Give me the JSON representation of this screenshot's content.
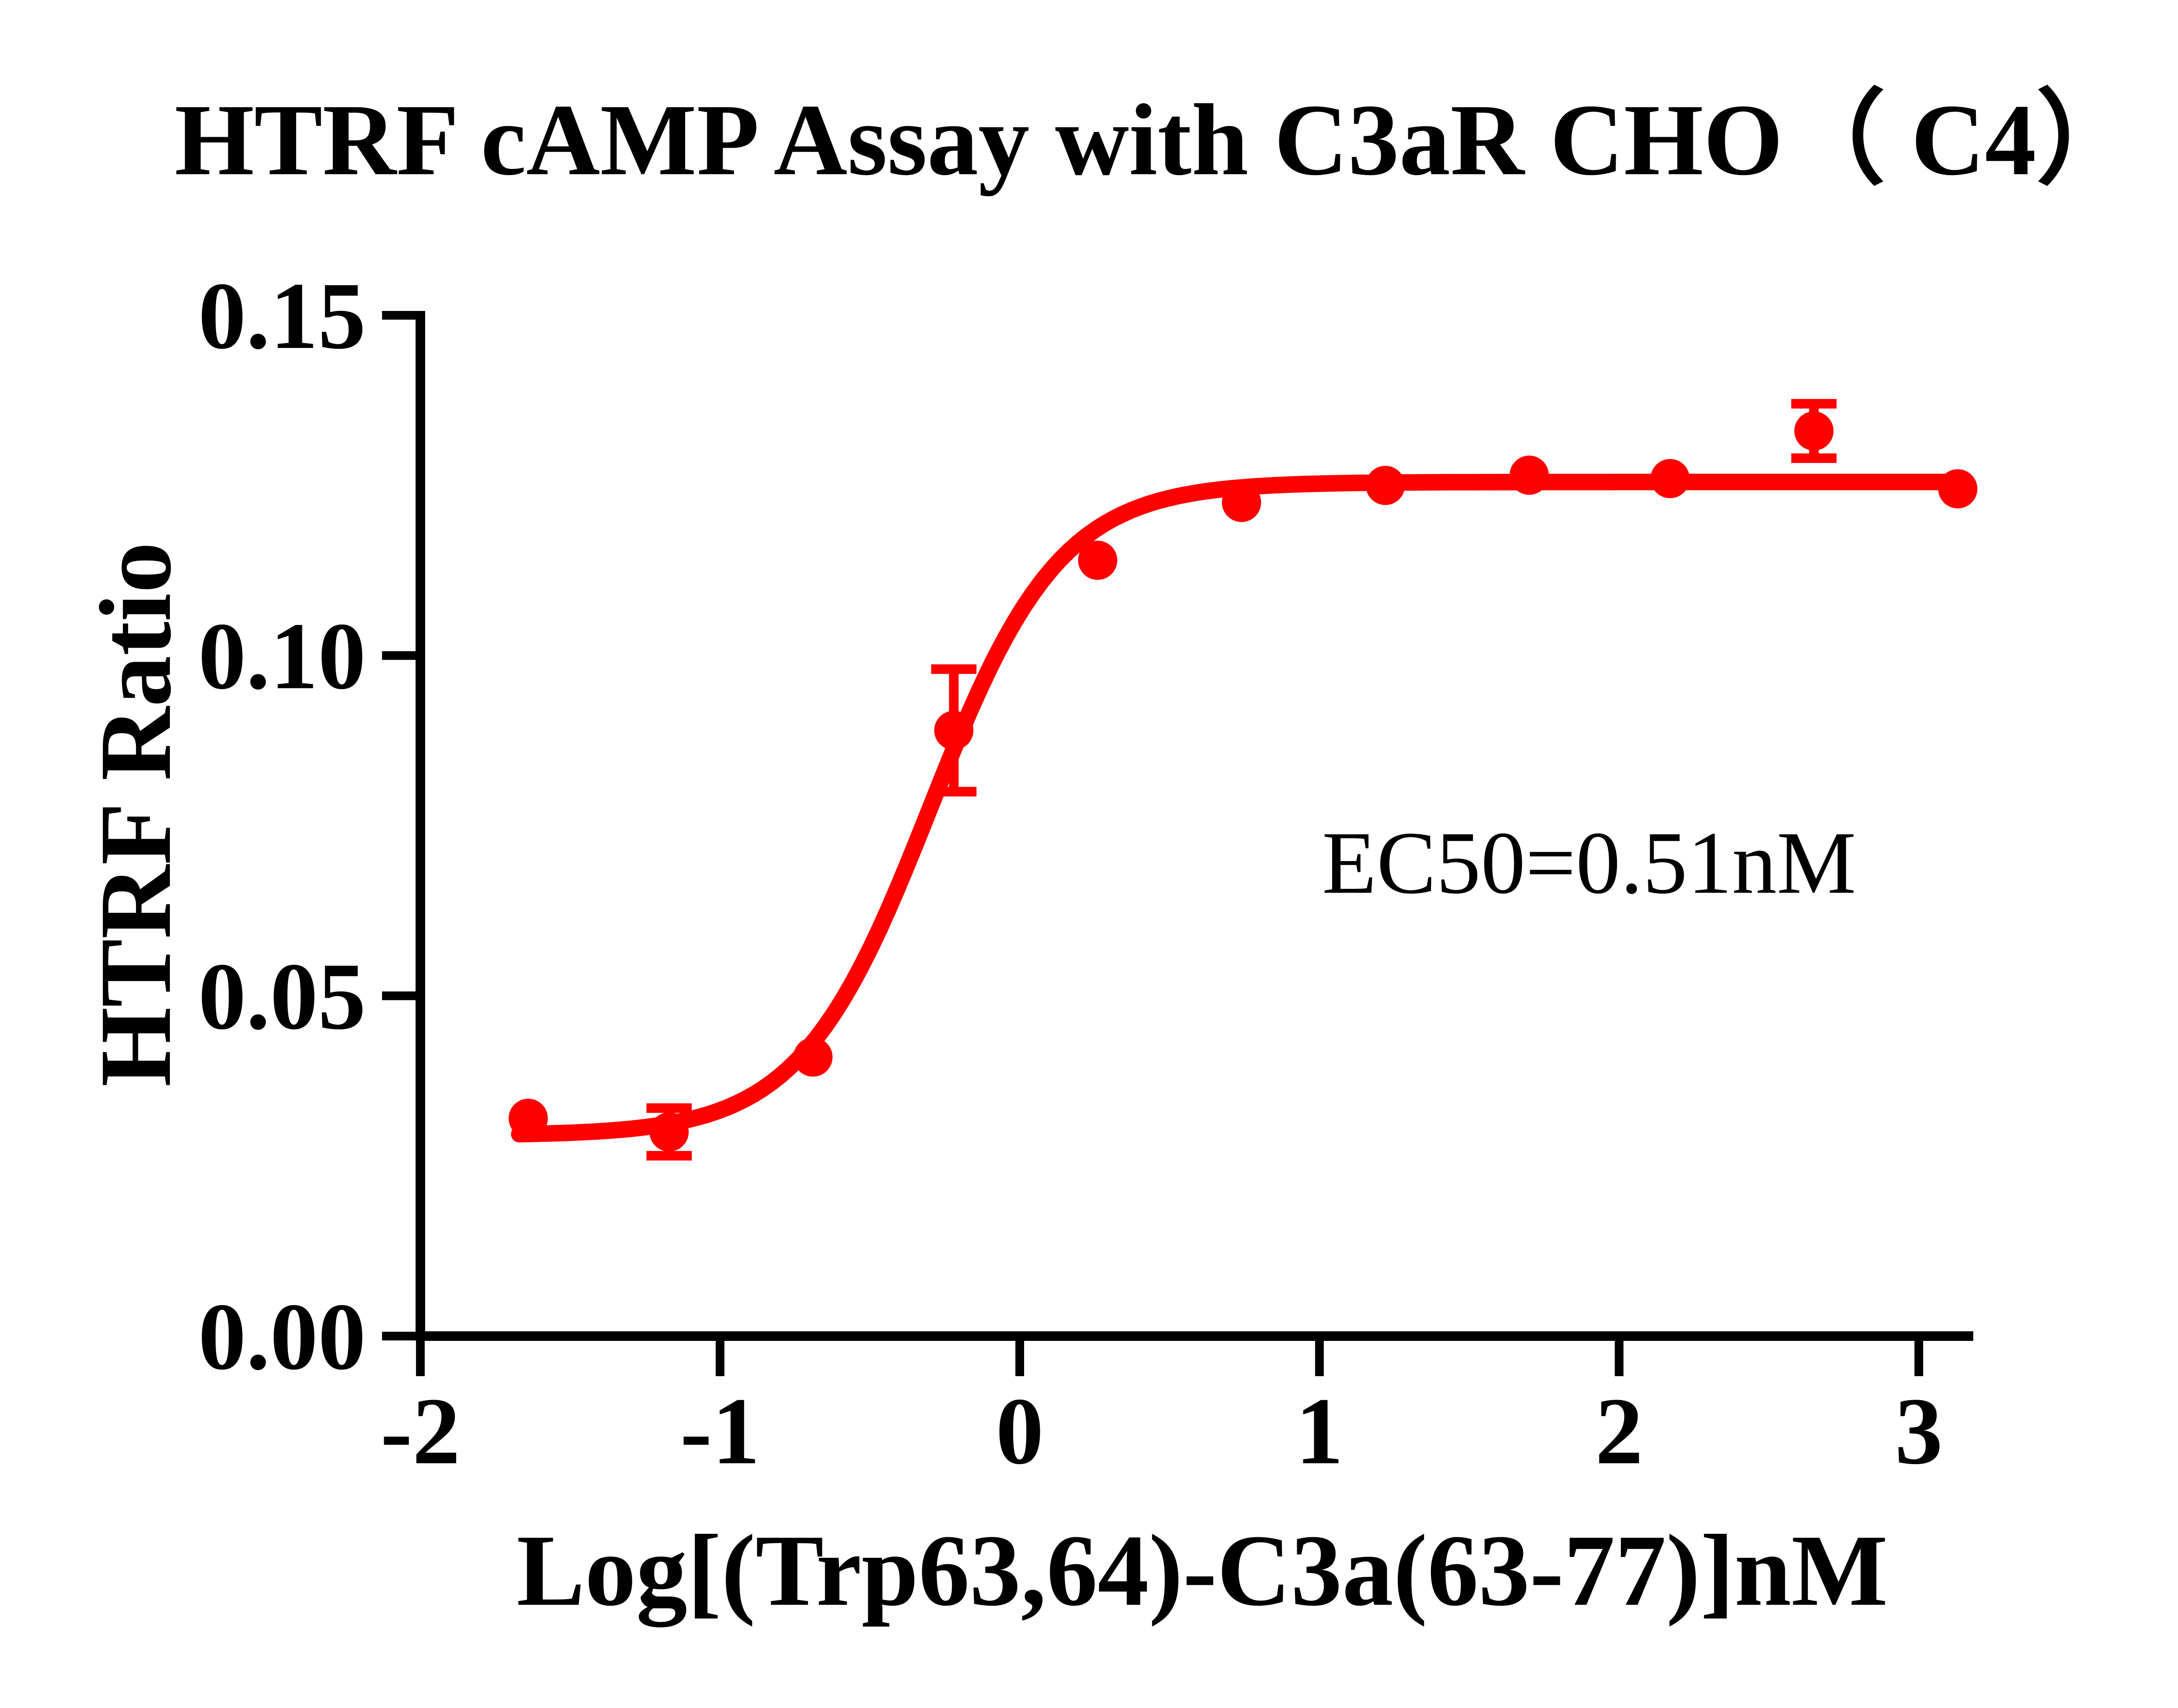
{
  "colors": {
    "series": "#FF0000",
    "axis": "#000000",
    "text": "#000000",
    "background": "#FFFFFF"
  },
  "chart_data": {
    "type": "scatter",
    "title": "HTRF cAMP Assay with C3aR CHO（ C4）",
    "xlabel": "Log[(Trp63,64)-C3a(63-77)]nM",
    "ylabel": "HTRF Ratio",
    "xlim": [
      -2,
      3.25
    ],
    "ylim": [
      0,
      0.15
    ],
    "x_ticks": [
      -2,
      -1,
      0,
      1,
      2,
      3
    ],
    "x_tick_labels": [
      "-2",
      "-1",
      "0",
      "1",
      "2",
      "3"
    ],
    "y_ticks": [
      0,
      0.05,
      0.1,
      0.15
    ],
    "y_tick_labels": [
      "0.00",
      "0.05",
      "0.10",
      "0.15"
    ],
    "grid": false,
    "legend": "none",
    "series": [
      {
        "name": "(Trp63,64)-C3a(63-77)",
        "color": "#FF0000",
        "marker": "circle",
        "points": [
          {
            "x": -1.64,
            "y": 0.032
          },
          {
            "x": -1.17,
            "y": 0.03,
            "sd": 0.0035
          },
          {
            "x": -0.69,
            "y": 0.041
          },
          {
            "x": -0.22,
            "y": 0.089,
            "sd": 0.009
          },
          {
            "x": 0.26,
            "y": 0.114
          },
          {
            "x": 0.74,
            "y": 0.1225
          },
          {
            "x": 1.22,
            "y": 0.125
          },
          {
            "x": 1.7,
            "y": 0.1265
          },
          {
            "x": 2.17,
            "y": 0.126
          },
          {
            "x": 2.65,
            "y": 0.133,
            "sd": 0.004
          },
          {
            "x": 3.13,
            "y": 0.1245
          }
        ],
        "fit": {
          "model": "4PL",
          "bottom": 0.0295,
          "top": 0.1255,
          "logEC50": -0.3,
          "hill": 2.0,
          "x_start": -1.67,
          "x_end": 3.14,
          "ec50_nM": 0.51
        }
      }
    ],
    "annotations": [
      {
        "text": "EC50=0.51nM",
        "x": 1.0,
        "y": 0.0653,
        "anchor": "start"
      }
    ]
  }
}
